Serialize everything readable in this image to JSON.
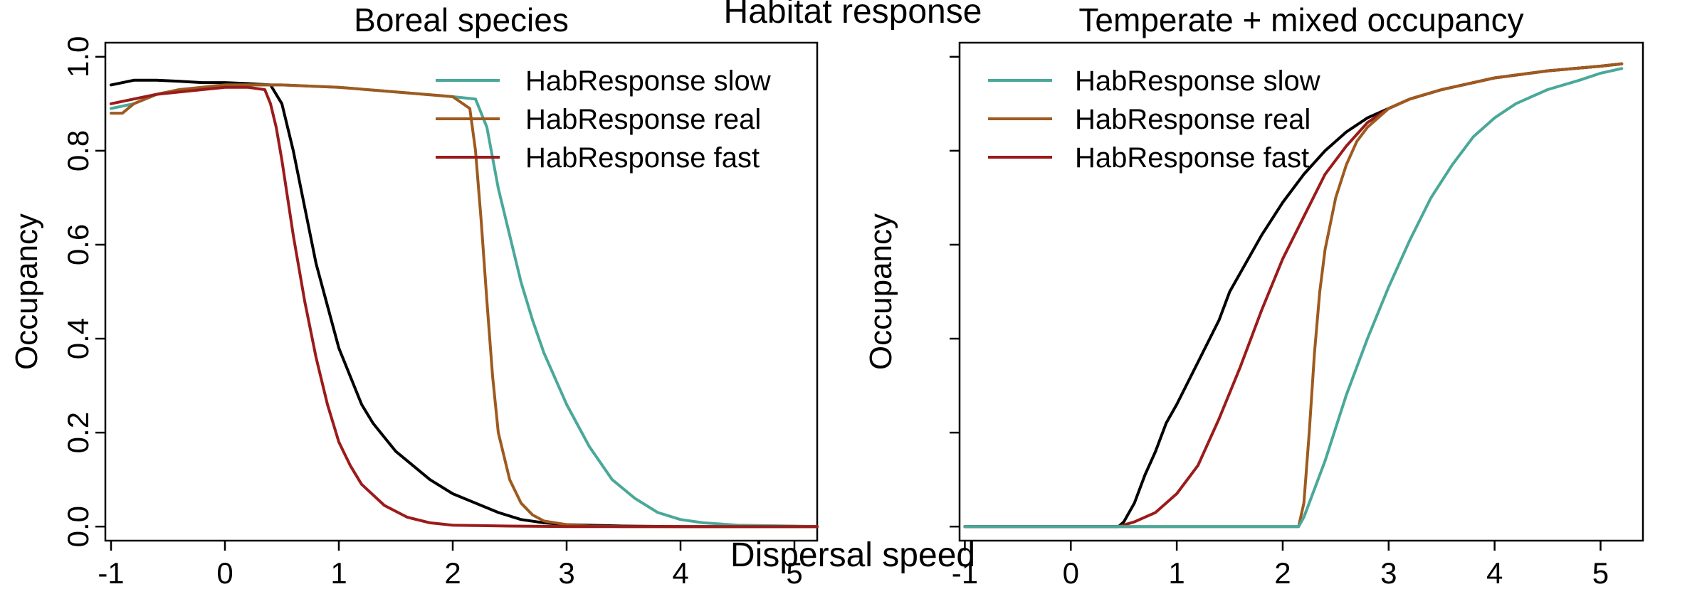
{
  "figure": {
    "title": "Habitat response",
    "xlabel": "Dispersal speed"
  },
  "chart_data": [
    {
      "type": "line",
      "title": "Boreal species",
      "ylabel": "Occupancy",
      "xlim": [
        -1.05,
        5.2
      ],
      "ylim": [
        -0.03,
        1.03
      ],
      "xticks": [
        "-1",
        "0",
        "1",
        "2",
        "3",
        "4",
        "5"
      ],
      "yticks": [
        "0.0",
        "0.2",
        "0.4",
        "0.6",
        "0.8",
        "1.0"
      ],
      "grid": false,
      "legend_position": "top-right",
      "legend": [
        {
          "label": "HabResponse slow",
          "color": "#4aa89a"
        },
        {
          "label": "HabResponse real",
          "color": "#9e5a1e"
        },
        {
          "label": "HabResponse fast",
          "color": "#9b1b1b"
        }
      ],
      "series": [
        {
          "color": "#000000",
          "x": [
            -1,
            -0.8,
            -0.6,
            -0.4,
            -0.2,
            0,
            0.2,
            0.4,
            0.5,
            0.6,
            0.7,
            0.8,
            0.9,
            1.0,
            1.1,
            1.2,
            1.3,
            1.4,
            1.5,
            1.6,
            1.8,
            2.0,
            2.2,
            2.4,
            2.6,
            2.8,
            3.0,
            3.5,
            4,
            4.5,
            5,
            5.2
          ],
          "y": [
            0.94,
            0.95,
            0.95,
            0.948,
            0.945,
            0.945,
            0.943,
            0.94,
            0.9,
            0.8,
            0.68,
            0.56,
            0.47,
            0.38,
            0.32,
            0.26,
            0.22,
            0.19,
            0.16,
            0.14,
            0.1,
            0.07,
            0.05,
            0.03,
            0.015,
            0.008,
            0.004,
            0.001,
            0,
            0,
            0,
            0
          ]
        },
        {
          "color": "#4aa89a",
          "x": [
            -1,
            -0.8,
            -0.6,
            -0.4,
            -0.2,
            0,
            0.5,
            1.0,
            1.5,
            2.0,
            2.2,
            2.3,
            2.4,
            2.5,
            2.6,
            2.7,
            2.8,
            3.0,
            3.2,
            3.4,
            3.6,
            3.8,
            4.0,
            4.2,
            4.5,
            5.0,
            5.2
          ],
          "y": [
            0.89,
            0.9,
            0.92,
            0.93,
            0.935,
            0.94,
            0.94,
            0.935,
            0.925,
            0.915,
            0.91,
            0.85,
            0.72,
            0.62,
            0.52,
            0.44,
            0.37,
            0.26,
            0.17,
            0.1,
            0.06,
            0.03,
            0.015,
            0.008,
            0.003,
            0.001,
            0
          ]
        },
        {
          "color": "#9e5a1e",
          "x": [
            -1,
            -0.9,
            -0.8,
            -0.7,
            -0.6,
            -0.4,
            -0.2,
            0,
            0.5,
            1.0,
            1.5,
            2.0,
            2.15,
            2.2,
            2.25,
            2.3,
            2.35,
            2.4,
            2.5,
            2.6,
            2.7,
            2.8,
            3.0,
            3.2,
            3.5,
            4,
            5,
            5.2
          ],
          "y": [
            0.88,
            0.88,
            0.9,
            0.91,
            0.92,
            0.93,
            0.935,
            0.94,
            0.94,
            0.935,
            0.925,
            0.915,
            0.89,
            0.8,
            0.65,
            0.48,
            0.32,
            0.2,
            0.1,
            0.05,
            0.025,
            0.012,
            0.004,
            0.001,
            0,
            0,
            0,
            0
          ]
        },
        {
          "color": "#9b1b1b",
          "x": [
            -1,
            -0.8,
            -0.6,
            -0.4,
            -0.2,
            0,
            0.2,
            0.35,
            0.4,
            0.45,
            0.5,
            0.55,
            0.6,
            0.7,
            0.8,
            0.9,
            1.0,
            1.1,
            1.2,
            1.4,
            1.6,
            1.8,
            2.0,
            2.5,
            3,
            4,
            5,
            5.2
          ],
          "y": [
            0.9,
            0.91,
            0.92,
            0.925,
            0.93,
            0.935,
            0.935,
            0.93,
            0.9,
            0.85,
            0.78,
            0.7,
            0.62,
            0.48,
            0.36,
            0.26,
            0.18,
            0.13,
            0.09,
            0.045,
            0.02,
            0.008,
            0.003,
            0.001,
            0,
            0,
            0,
            0
          ]
        }
      ]
    },
    {
      "type": "line",
      "title": "Temperate + mixed occupancy",
      "ylabel": "Occupancy",
      "xlim": [
        -1.05,
        5.4
      ],
      "ylim": [
        -0.03,
        1.03
      ],
      "xticks": [
        "-1",
        "0",
        "1",
        "2",
        "3",
        "4",
        "5"
      ],
      "grid": false,
      "legend_position": "top-left",
      "legend": [
        {
          "label": "HabResponse slow",
          "color": "#4aa89a"
        },
        {
          "label": "HabResponse real",
          "color": "#9e5a1e"
        },
        {
          "label": "HabResponse fast",
          "color": "#9b1b1b"
        }
      ],
      "series": [
        {
          "color": "#000000",
          "x": [
            -1,
            0,
            0.45,
            0.5,
            0.6,
            0.7,
            0.8,
            0.9,
            1.0,
            1.2,
            1.4,
            1.5,
            1.6,
            1.8,
            2.0,
            2.2,
            2.4,
            2.6,
            2.8,
            3.0,
            3.2,
            3.5,
            4.0,
            4.5,
            5.0,
            5.2
          ],
          "y": [
            0,
            0,
            0,
            0.01,
            0.05,
            0.11,
            0.16,
            0.22,
            0.26,
            0.35,
            0.44,
            0.5,
            0.54,
            0.62,
            0.69,
            0.75,
            0.8,
            0.84,
            0.87,
            0.89,
            0.91,
            0.93,
            0.955,
            0.97,
            0.98,
            0.985
          ]
        },
        {
          "color": "#9b1b1b",
          "x": [
            -1,
            0,
            0.45,
            0.6,
            0.8,
            1.0,
            1.2,
            1.4,
            1.6,
            1.8,
            2.0,
            2.2,
            2.4,
            2.6,
            2.8,
            3.0,
            3.2,
            3.5,
            4.0,
            4.5,
            5.0,
            5.2
          ],
          "y": [
            0,
            0,
            0,
            0.01,
            0.03,
            0.07,
            0.13,
            0.23,
            0.34,
            0.46,
            0.57,
            0.66,
            0.75,
            0.81,
            0.86,
            0.89,
            0.91,
            0.93,
            0.955,
            0.97,
            0.98,
            0.985
          ]
        },
        {
          "color": "#9e5a1e",
          "x": [
            -1,
            0,
            1.0,
            2.0,
            2.15,
            2.2,
            2.25,
            2.3,
            2.35,
            2.4,
            2.5,
            2.6,
            2.7,
            2.8,
            2.9,
            3.0,
            3.2,
            3.5,
            4.0,
            4.5,
            5.0,
            5.2
          ],
          "y": [
            0,
            0,
            0,
            0,
            0,
            0.05,
            0.2,
            0.37,
            0.5,
            0.59,
            0.7,
            0.77,
            0.82,
            0.85,
            0.87,
            0.89,
            0.91,
            0.93,
            0.955,
            0.97,
            0.98,
            0.985
          ]
        },
        {
          "color": "#4aa89a",
          "x": [
            -1,
            0,
            1.0,
            2.0,
            2.1,
            2.15,
            2.2,
            2.3,
            2.4,
            2.5,
            2.6,
            2.8,
            3.0,
            3.2,
            3.4,
            3.6,
            3.8,
            4.0,
            4.2,
            4.5,
            4.8,
            5.0,
            5.2
          ],
          "y": [
            0,
            0,
            0,
            0,
            0,
            0,
            0.02,
            0.08,
            0.14,
            0.21,
            0.28,
            0.4,
            0.51,
            0.61,
            0.7,
            0.77,
            0.83,
            0.87,
            0.9,
            0.93,
            0.95,
            0.965,
            0.975
          ]
        }
      ]
    }
  ]
}
